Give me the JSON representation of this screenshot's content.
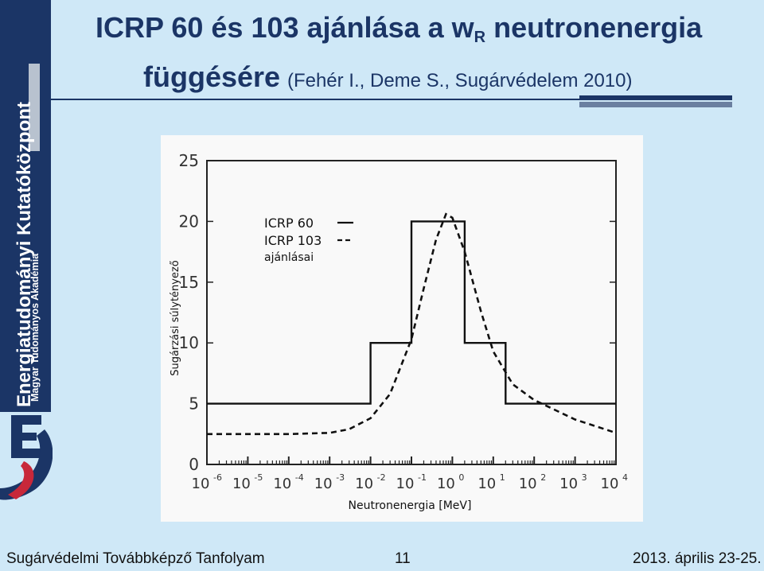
{
  "sidebar": {
    "main_text": "Energiatudományi Kutatóközpont",
    "sub_text": "Magyar Tudományos Akadémia",
    "logo_text": "EK"
  },
  "title": {
    "line1_prefix": "ICRP 60 és 103 ajánlása a w",
    "line1_sub": "R",
    "line1_suffix": " neutronenergia",
    "line2_bold": "függésére",
    "line2_citation": "(Fehér I., Deme S., Sugárvédelem 2010)"
  },
  "footer": {
    "left": "Sugárvédelmi Továbbképző Tanfolyam",
    "page": "11",
    "right": "2013. április 23-25."
  },
  "colors": {
    "background": "#cfe8f7",
    "sidebar": "#1b3566",
    "title": "#1b3566",
    "chart_panel": "#f9f9f9"
  },
  "chart_data": {
    "type": "line",
    "xlabel": "Neutronenergia [MeV]",
    "ylabel": "Sugárzási súlytényező",
    "x_scale": "log",
    "xlim": [
      1e-06,
      10000.0
    ],
    "ylim": [
      0,
      25
    ],
    "y_ticks": [
      "0",
      "5",
      "10",
      "15",
      "20",
      "25"
    ],
    "x_ticks": [
      {
        "base": "10",
        "exp": "-6"
      },
      {
        "base": "10",
        "exp": "-5"
      },
      {
        "base": "10",
        "exp": "-4"
      },
      {
        "base": "10",
        "exp": "-3"
      },
      {
        "base": "10",
        "exp": "-2"
      },
      {
        "base": "10",
        "exp": "-1"
      },
      {
        "base": "10",
        "exp": "0"
      },
      {
        "base": "10",
        "exp": "1"
      },
      {
        "base": "10",
        "exp": "2"
      },
      {
        "base": "10",
        "exp": "3"
      },
      {
        "base": "10",
        "exp": "4"
      }
    ],
    "legend_position": "top-left",
    "legend_note": "ajánlásai",
    "series": [
      {
        "name": "ICRP 60",
        "style": "solid",
        "step": true,
        "x": [
          1e-06,
          0.01,
          0.01,
          0.1,
          0.1,
          2,
          2,
          20,
          20,
          10000
        ],
        "y": [
          5,
          5,
          10,
          10,
          20,
          20,
          10,
          10,
          5,
          5
        ]
      },
      {
        "name": "ICRP 103",
        "style": "dashed",
        "step": false,
        "x": [
          1e-06,
          0.0001,
          0.001,
          0.003,
          0.01,
          0.03,
          0.1,
          0.2,
          0.4,
          0.7,
          1,
          2,
          5,
          10,
          30,
          100,
          1000,
          10000
        ],
        "y": [
          2.5,
          2.5,
          2.6,
          2.9,
          3.8,
          5.8,
          10.3,
          14.5,
          18.5,
          20.6,
          20.3,
          17.5,
          12.6,
          9.3,
          6.6,
          5.3,
          3.7,
          2.6
        ]
      }
    ]
  }
}
